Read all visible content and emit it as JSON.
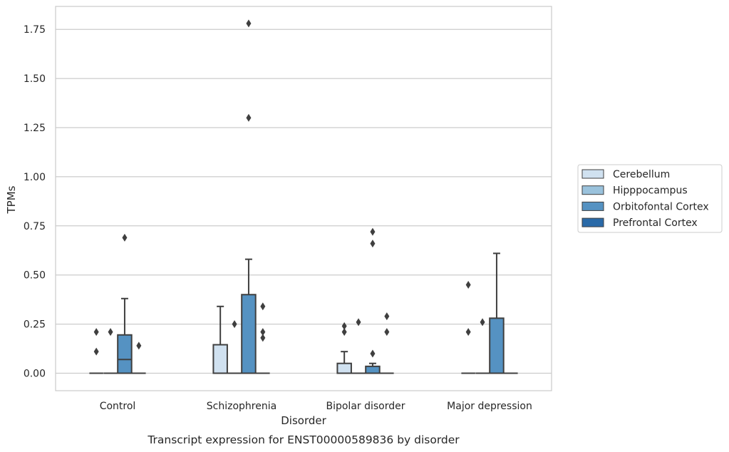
{
  "chart_data": {
    "type": "box",
    "title": "",
    "caption": "Transcript expression for ENST00000589836 by disorder",
    "xlabel": "Disorder",
    "ylabel": "TPMs",
    "ylim": [
      -0.09,
      1.87
    ],
    "yticks": [
      "0.00",
      "0.25",
      "0.50",
      "0.75",
      "1.00",
      "1.25",
      "1.50",
      "1.75"
    ],
    "grid": "horizontal",
    "legend_position": "right-center",
    "categories": [
      "Control",
      "Schizophrenia",
      "Bipolar disorder",
      "Major depression"
    ],
    "series": [
      {
        "name": "Cerebellum",
        "color": "#d0e1f0",
        "boxes": [
          {
            "category": "Control",
            "q1": 0,
            "median": 0,
            "q3": 0,
            "whisker_low": 0,
            "whisker_high": 0,
            "outliers": [
              0.21,
              0.11
            ]
          },
          {
            "category": "Schizophrenia",
            "q1": 0,
            "median": 0,
            "q3": 0.145,
            "whisker_low": 0,
            "whisker_high": 0.34,
            "outliers": []
          },
          {
            "category": "Bipolar disorder",
            "q1": 0,
            "median": 0,
            "q3": 0.05,
            "whisker_low": 0,
            "whisker_high": 0.11,
            "outliers": [
              0.24,
              0.21
            ]
          },
          {
            "category": "Major depression",
            "q1": 0,
            "median": 0,
            "q3": 0,
            "whisker_low": 0,
            "whisker_high": 0,
            "outliers": [
              0.45,
              0.21
            ]
          }
        ]
      },
      {
        "name": "Hipppocampus",
        "color": "#9ac2dc",
        "boxes": [
          {
            "category": "Control",
            "q1": 0,
            "median": 0,
            "q3": 0,
            "whisker_low": 0,
            "whisker_high": 0,
            "outliers": [
              0.21
            ]
          },
          {
            "category": "Schizophrenia",
            "q1": 0,
            "median": 0,
            "q3": 0,
            "whisker_low": 0,
            "whisker_high": 0,
            "outliers": [
              0.25
            ]
          },
          {
            "category": "Bipolar disorder",
            "q1": 0,
            "median": 0,
            "q3": 0,
            "whisker_low": 0,
            "whisker_high": 0,
            "outliers": [
              0.26
            ]
          },
          {
            "category": "Major depression",
            "q1": 0,
            "median": 0,
            "q3": 0,
            "whisker_low": 0,
            "whisker_high": 0,
            "outliers": [
              0.26
            ]
          }
        ]
      },
      {
        "name": "Orbitofontal Cortex",
        "color": "#5592c2",
        "boxes": [
          {
            "category": "Control",
            "q1": 0,
            "median": 0.07,
            "q3": 0.195,
            "whisker_low": 0,
            "whisker_high": 0.38,
            "outliers": [
              0.69
            ]
          },
          {
            "category": "Schizophrenia",
            "q1": 0,
            "median": 0,
            "q3": 0.4,
            "whisker_low": 0,
            "whisker_high": 0.58,
            "outliers": [
              1.78,
              1.3
            ]
          },
          {
            "category": "Bipolar disorder",
            "q1": 0,
            "median": 0,
            "q3": 0.035,
            "whisker_low": 0,
            "whisker_high": 0.05,
            "outliers": [
              0.72,
              0.66,
              0.1
            ]
          },
          {
            "category": "Major depression",
            "q1": 0,
            "median": 0,
            "q3": 0.28,
            "whisker_low": 0,
            "whisker_high": 0.61,
            "outliers": []
          }
        ]
      },
      {
        "name": "Prefrontal Cortex",
        "color": "#2a6aa8",
        "boxes": [
          {
            "category": "Control",
            "q1": 0,
            "median": 0,
            "q3": 0,
            "whisker_low": 0,
            "whisker_high": 0,
            "outliers": [
              0.14
            ]
          },
          {
            "category": "Schizophrenia",
            "q1": 0,
            "median": 0,
            "q3": 0,
            "whisker_low": 0,
            "whisker_high": 0,
            "outliers": [
              0.34,
              0.21,
              0.18
            ]
          },
          {
            "category": "Bipolar disorder",
            "q1": 0,
            "median": 0,
            "q3": 0,
            "whisker_low": 0,
            "whisker_high": 0,
            "outliers": [
              0.29,
              0.21
            ]
          },
          {
            "category": "Major depression",
            "q1": 0,
            "median": 0,
            "q3": 0,
            "whisker_low": 0,
            "whisker_high": 0,
            "outliers": []
          }
        ]
      }
    ]
  }
}
